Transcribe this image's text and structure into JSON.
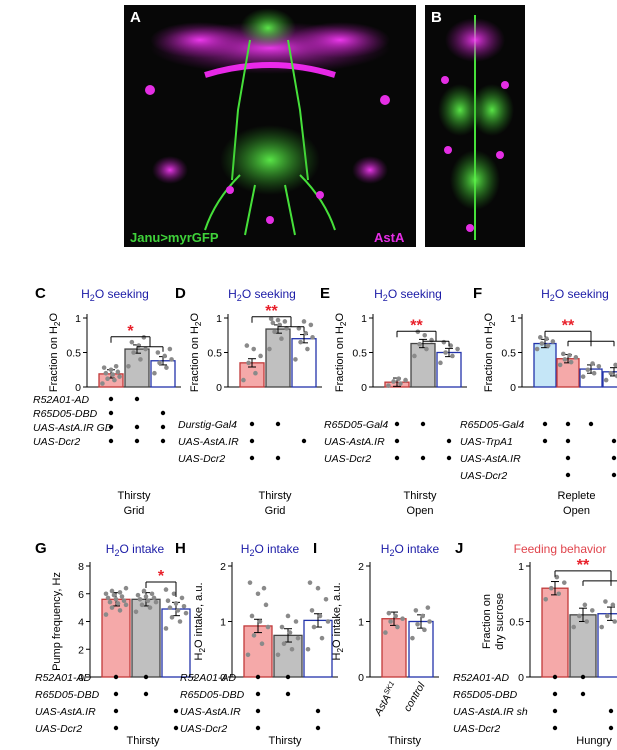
{
  "colors": {
    "blue_title": "#1a1aa6",
    "red_title": "#e0444c",
    "red": "#e8202a",
    "green": "#3fd23a",
    "magenta": "#e42ee4",
    "bar_pink": "#f5a9a9",
    "bar_gray": "#c0c0c0",
    "bar_blue": "#c5e6f7",
    "bar_edge_pink": "#c13a3a",
    "bar_edge_gray": "#444444",
    "bar_edge_blue": "#2233aa"
  },
  "images": [
    {
      "id": "A",
      "label": "A",
      "caption_left": "Janu>myrGFP",
      "caption_right": "AstA"
    },
    {
      "id": "B",
      "label": "B"
    }
  ],
  "chart_data": [
    {
      "id": "C",
      "type": "bar",
      "label": "C",
      "title": "H2O seeking",
      "title_color": "blue",
      "ylabel": "Fraction on H2O",
      "ylim": [
        0,
        1
      ],
      "yticks": [
        "0",
        "0.5",
        "1"
      ],
      "bars": [
        {
          "value": 0.19,
          "color": "pink"
        },
        {
          "value": 0.55,
          "color": "gray"
        },
        {
          "value": 0.38,
          "color": "white"
        }
      ],
      "points": [
        [
          0.05,
          0.1,
          0.12,
          0.15,
          0.18,
          0.2,
          0.22,
          0.25,
          0.28,
          0.3
        ],
        [
          0.3,
          0.4,
          0.5,
          0.55,
          0.6,
          0.65,
          0.72
        ],
        [
          0.2,
          0.28,
          0.35,
          0.4,
          0.45,
          0.5,
          0.55
        ]
      ],
      "sig": {
        "stars": "*",
        "from": 0,
        "to": [
          1,
          2
        ]
      },
      "genotypes": [
        "R52A01-AD",
        "R65D05-DBD",
        "UAS-AstA.IR GD",
        "UAS-Dcr2"
      ],
      "matrix": [
        [
          1,
          1,
          0
        ],
        [
          1,
          0,
          1
        ],
        [
          1,
          1,
          1
        ],
        [
          1,
          1,
          1
        ]
      ],
      "condition": [
        "Thirsty",
        "Grid"
      ]
    },
    {
      "id": "D",
      "type": "bar",
      "label": "D",
      "title": "H2O seeking",
      "title_color": "blue",
      "ylabel": "Fraction on H2O",
      "ylim": [
        0,
        1
      ],
      "yticks": [
        "0",
        "0.5",
        "1"
      ],
      "bars": [
        {
          "value": 0.35,
          "color": "pink"
        },
        {
          "value": 0.84,
          "color": "gray"
        },
        {
          "value": 0.7,
          "color": "white"
        }
      ],
      "points": [
        [
          0.1,
          0.2,
          0.35,
          0.45,
          0.55,
          0.6
        ],
        [
          0.55,
          0.7,
          0.8,
          0.85,
          0.9,
          0.93,
          0.95,
          0.97,
          0.99
        ],
        [
          0.4,
          0.55,
          0.65,
          0.72,
          0.78,
          0.85,
          0.9,
          0.95
        ]
      ],
      "sig": {
        "stars": "**",
        "from": 0,
        "to": [
          1,
          2
        ]
      },
      "genotypes": [
        "Durstig-Gal4",
        "UAS-AstA.IR",
        "UAS-Dcr2"
      ],
      "matrix": [
        [
          1,
          1,
          0
        ],
        [
          1,
          0,
          1
        ],
        [
          1,
          1,
          0
        ]
      ],
      "condition": [
        "Thirsty",
        "Grid"
      ]
    },
    {
      "id": "E",
      "type": "bar",
      "label": "E",
      "title": "H2O seeking",
      "title_color": "blue",
      "ylabel": "Fraction on H2O",
      "ylim": [
        0,
        1
      ],
      "yticks": [
        "0",
        "0.5",
        "1"
      ],
      "bars": [
        {
          "value": 0.07,
          "color": "pink"
        },
        {
          "value": 0.63,
          "color": "gray"
        },
        {
          "value": 0.5,
          "color": "white"
        }
      ],
      "points": [
        [
          0.02,
          0.05,
          0.08,
          0.1,
          0.12
        ],
        [
          0.45,
          0.55,
          0.62,
          0.68,
          0.75,
          0.8
        ],
        [
          0.35,
          0.45,
          0.5,
          0.55,
          0.6,
          0.65
        ]
      ],
      "sig": {
        "stars": "**",
        "from": 0,
        "to": [
          1,
          2
        ]
      },
      "genotypes": [
        "R65D05-Gal4",
        "UAS-AstA.IR",
        "UAS-Dcr2"
      ],
      "matrix": [
        [
          1,
          1,
          0
        ],
        [
          1,
          0,
          1
        ],
        [
          1,
          1,
          1
        ]
      ],
      "condition": [
        "Thirsty",
        "Open"
      ]
    },
    {
      "id": "F",
      "type": "bar",
      "label": "F",
      "title": "H2O seeking",
      "title_color": "blue",
      "ylabel": "Fraction on H2O",
      "ylim": [
        0,
        1
      ],
      "yticks": [
        "0",
        "0.5",
        "1"
      ],
      "bars": [
        {
          "value": 0.63,
          "color": "blue"
        },
        {
          "value": 0.41,
          "color": "pink"
        },
        {
          "value": 0.26,
          "color": "white"
        },
        {
          "value": 0.22,
          "color": "white"
        }
      ],
      "points": [
        [
          0.55,
          0.6,
          0.63,
          0.66,
          0.7,
          0.72
        ],
        [
          0.32,
          0.36,
          0.4,
          0.43,
          0.46,
          0.48
        ],
        [
          0.15,
          0.2,
          0.25,
          0.3,
          0.34
        ],
        [
          0.1,
          0.16,
          0.2,
          0.25,
          0.32
        ]
      ],
      "sig": {
        "stars": "**",
        "from": 0,
        "to": [
          1,
          2,
          3
        ]
      },
      "genotypes": [
        "R65D05-Gal4",
        "UAS-TrpA1",
        "UAS-AstA.IR",
        "UAS-Dcr2"
      ],
      "matrix": [
        [
          1,
          1,
          1,
          0
        ],
        [
          1,
          1,
          0,
          1
        ],
        [
          0,
          1,
          0,
          1
        ],
        [
          0,
          1,
          0,
          1
        ]
      ],
      "condition": [
        "Replete",
        "Open"
      ]
    },
    {
      "id": "G",
      "type": "bar",
      "label": "G",
      "title": "H2O intake",
      "title_color": "blue",
      "ylabel": "Pump frequency, Hz",
      "ylim": [
        0,
        8
      ],
      "yticks": [
        "0",
        "2",
        "4",
        "6",
        "8"
      ],
      "bars": [
        {
          "value": 5.6,
          "color": "pink"
        },
        {
          "value": 5.6,
          "color": "gray"
        },
        {
          "value": 4.9,
          "color": "white"
        }
      ],
      "points": [
        [
          4.5,
          4.8,
          5.0,
          5.2,
          5.3,
          5.4,
          5.5,
          5.6,
          5.7,
          5.8,
          5.9,
          6.0,
          6.1,
          6.2,
          6.4
        ],
        [
          4.7,
          5.0,
          5.2,
          5.4,
          5.5,
          5.6,
          5.7,
          5.8,
          5.9,
          6.0,
          6.2
        ],
        [
          3.5,
          4.0,
          4.3,
          4.6,
          4.8,
          5.0,
          5.1,
          5.3,
          5.5,
          5.7,
          6.0,
          6.3
        ]
      ],
      "sig": {
        "stars": "*",
        "from": 1,
        "to": [
          2
        ]
      },
      "genotypes": [
        "R52A01-AD",
        "R65D05-DBD",
        "UAS-AstA.IR",
        "UAS-Dcr2"
      ],
      "matrix": [
        [
          1,
          1,
          0
        ],
        [
          1,
          1,
          0
        ],
        [
          1,
          0,
          1
        ],
        [
          1,
          0,
          1
        ]
      ],
      "condition": [
        "Thirsty"
      ]
    },
    {
      "id": "H",
      "type": "bar",
      "label": "H",
      "title": "H2O intake",
      "title_color": "blue",
      "ylabel": "H2O intake, a.u.",
      "ylim": [
        0,
        2
      ],
      "yticks": [
        "0",
        "1",
        "2"
      ],
      "bars": [
        {
          "value": 0.92,
          "color": "pink"
        },
        {
          "value": 0.75,
          "color": "gray"
        },
        {
          "value": 1.02,
          "color": "white"
        }
      ],
      "points": [
        [
          0.4,
          0.6,
          0.75,
          0.9,
          1.0,
          1.1,
          1.3,
          1.5,
          1.7,
          1.6
        ],
        [
          0.4,
          0.5,
          0.6,
          0.7,
          0.8,
          0.9,
          1.0,
          1.1
        ],
        [
          0.5,
          0.7,
          0.9,
          1.0,
          1.1,
          1.2,
          1.4,
          1.6,
          1.7
        ]
      ],
      "sig": null,
      "genotypes": [
        "R52A01-AD",
        "R65D05-DBD",
        "UAS-AstA.IR",
        "UAS-Dcr2"
      ],
      "matrix": [
        [
          1,
          1,
          0
        ],
        [
          1,
          1,
          0
        ],
        [
          1,
          0,
          1
        ],
        [
          1,
          0,
          1
        ]
      ],
      "condition": [
        "Thirsty"
      ]
    },
    {
      "id": "I",
      "type": "bar",
      "label": "I",
      "title": "H2O intake",
      "title_color": "blue",
      "ylabel": "H2O intake, a.u.",
      "ylim": [
        0,
        2
      ],
      "yticks": [
        "0",
        "1",
        "2"
      ],
      "bars": [
        {
          "value": 1.05,
          "color": "pink"
        },
        {
          "value": 1.0,
          "color": "white"
        }
      ],
      "points": [
        [
          0.8,
          0.9,
          1.0,
          1.05,
          1.1,
          1.15
        ],
        [
          0.7,
          0.85,
          0.95,
          1.0,
          1.1,
          1.2,
          1.25
        ]
      ],
      "sig": null,
      "xlabels": [
        {
          "text": "AstA",
          "sup": "SK1"
        },
        {
          "text": "control",
          "sup": ""
        }
      ],
      "condition": [
        "Thirsty"
      ]
    },
    {
      "id": "J",
      "type": "bar",
      "label": "J",
      "title": "Feeding behavior",
      "title_color": "red",
      "ylabel": [
        "Fraction on",
        "dry sucrose"
      ],
      "ylim": [
        0,
        1
      ],
      "yticks": [
        "0",
        "0.5",
        "1"
      ],
      "bars": [
        {
          "value": 0.8,
          "color": "pink"
        },
        {
          "value": 0.56,
          "color": "gray"
        },
        {
          "value": 0.57,
          "color": "white"
        },
        {
          "value": 0.62,
          "color": "white_red"
        }
      ],
      "points": [
        [
          0.7,
          0.75,
          0.8,
          0.85,
          0.9
        ],
        [
          0.45,
          0.5,
          0.55,
          0.6,
          0.65
        ],
        [
          0.45,
          0.5,
          0.55,
          0.6,
          0.65,
          0.68
        ],
        [
          0.55,
          0.6,
          0.63,
          0.66,
          0.7
        ]
      ],
      "sig": {
        "stars": "**",
        "from": 0,
        "to": [
          1,
          2,
          3
        ]
      },
      "genotypes": [
        "R52A01-AD",
        "R65D05-DBD",
        "UAS-AstA.IR sh",
        "UAS-Dcr2"
      ],
      "matrix": [
        [
          1,
          1,
          0,
          1
        ],
        [
          1,
          1,
          0,
          1
        ],
        [
          1,
          0,
          1,
          1
        ],
        [
          1,
          0,
          1,
          1
        ]
      ],
      "condition": [
        "Hungry"
      ]
    }
  ]
}
